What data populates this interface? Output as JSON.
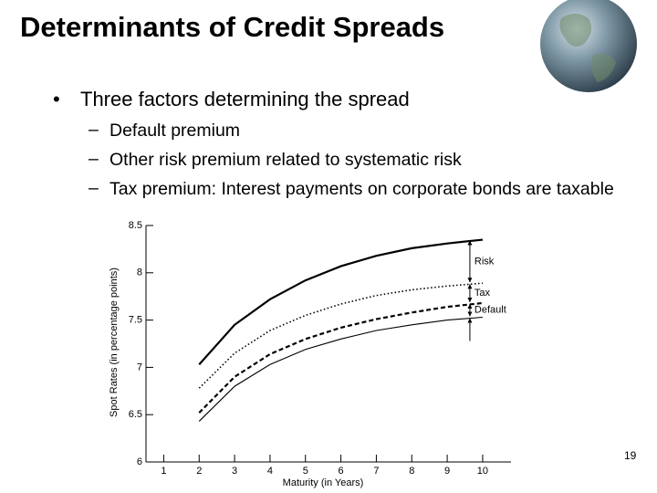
{
  "title": "Determinants of Credit Spreads",
  "bullets": [
    {
      "text": "Three factors determining the spread",
      "sub": [
        "Default premium",
        "Other risk premium related to systematic risk",
        "Tax premium: Interest payments on corporate bonds are taxable"
      ]
    }
  ],
  "page_number": 19,
  "chart_data": {
    "type": "line",
    "xlabel": "Maturity (in Years)",
    "ylabel": "Spot Rates (in percentage points)",
    "x": [
      2,
      3,
      4,
      5,
      6,
      7,
      8,
      9,
      10
    ],
    "series": [
      {
        "color": "#000000",
        "style": "thick",
        "values": [
          7.03,
          7.45,
          7.72,
          7.92,
          8.07,
          8.18,
          8.26,
          8.31,
          8.35
        ]
      },
      {
        "color": "#000000",
        "style": "dotted",
        "values": [
          6.78,
          7.15,
          7.39,
          7.55,
          7.67,
          7.76,
          7.82,
          7.86,
          7.89
        ]
      },
      {
        "color": "#000000",
        "style": "dashed",
        "values": [
          6.52,
          6.9,
          7.14,
          7.3,
          7.42,
          7.51,
          7.58,
          7.64,
          7.68
        ]
      },
      {
        "color": "#000000",
        "style": "thin",
        "values": [
          6.43,
          6.8,
          7.03,
          7.19,
          7.3,
          7.39,
          7.45,
          7.5,
          7.53
        ]
      }
    ],
    "annotations": [
      "Risk",
      "Tax",
      "Default"
    ],
    "xlim": [
      0.5,
      10.8
    ],
    "xticks": [
      1,
      2,
      3,
      4,
      5,
      6,
      7,
      8,
      9,
      10
    ],
    "ylim": [
      6,
      8.5
    ],
    "yticks": [
      6,
      6.5,
      7,
      7.5,
      8,
      8.5
    ]
  }
}
